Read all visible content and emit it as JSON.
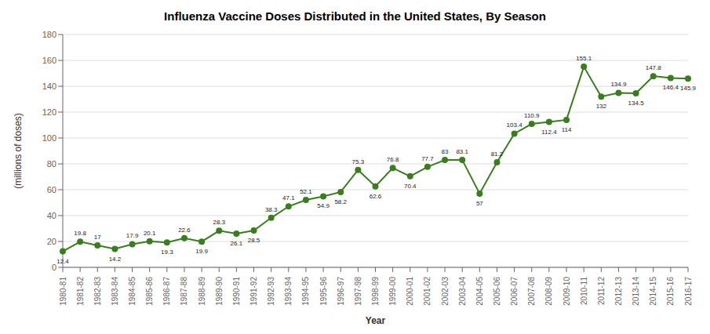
{
  "chart_data": {
    "type": "line",
    "title": "Influenza Vaccine Doses Distributed in the United States, By Season",
    "xlabel": "Year",
    "ylabel": "(millions of doses)",
    "categories": [
      "1980-81",
      "1981-82",
      "1982-83",
      "1983-84",
      "1984-85",
      "1985-86",
      "1986-87",
      "1987-88",
      "1988-89",
      "1989-90",
      "1990-91",
      "1991-92",
      "1992-93",
      "1993-94",
      "1994-95",
      "1995-96",
      "1996-97",
      "1997-98",
      "1998-99",
      "1999-00",
      "2000-01",
      "2001-02",
      "2002-03",
      "2003-04",
      "2004-05",
      "2005-06",
      "2006-07",
      "2007-08",
      "2008-09",
      "2009-10",
      "2010-11",
      "2011-12",
      "2012-13",
      "2013-14",
      "2014-15",
      "2015-16",
      "2016-17"
    ],
    "values": [
      12.4,
      19.8,
      17,
      14.2,
      17.9,
      20.1,
      19.3,
      22.6,
      19.9,
      28.3,
      26.1,
      28.5,
      38.3,
      47.1,
      52.1,
      54.9,
      58.2,
      75.3,
      62.6,
      76.8,
      70.4,
      77.7,
      83,
      83.1,
      57,
      81.2,
      103.4,
      110.9,
      112.4,
      114,
      155.1,
      132,
      134.9,
      134.5,
      147.8,
      146.4,
      145.9
    ],
    "color": "#3a7d1e",
    "marker": "circle",
    "ylim": [
      0,
      180
    ],
    "yticks": [
      0,
      20,
      40,
      60,
      80,
      100,
      120,
      140,
      160,
      180
    ],
    "grid": true,
    "data_labels": true
  }
}
